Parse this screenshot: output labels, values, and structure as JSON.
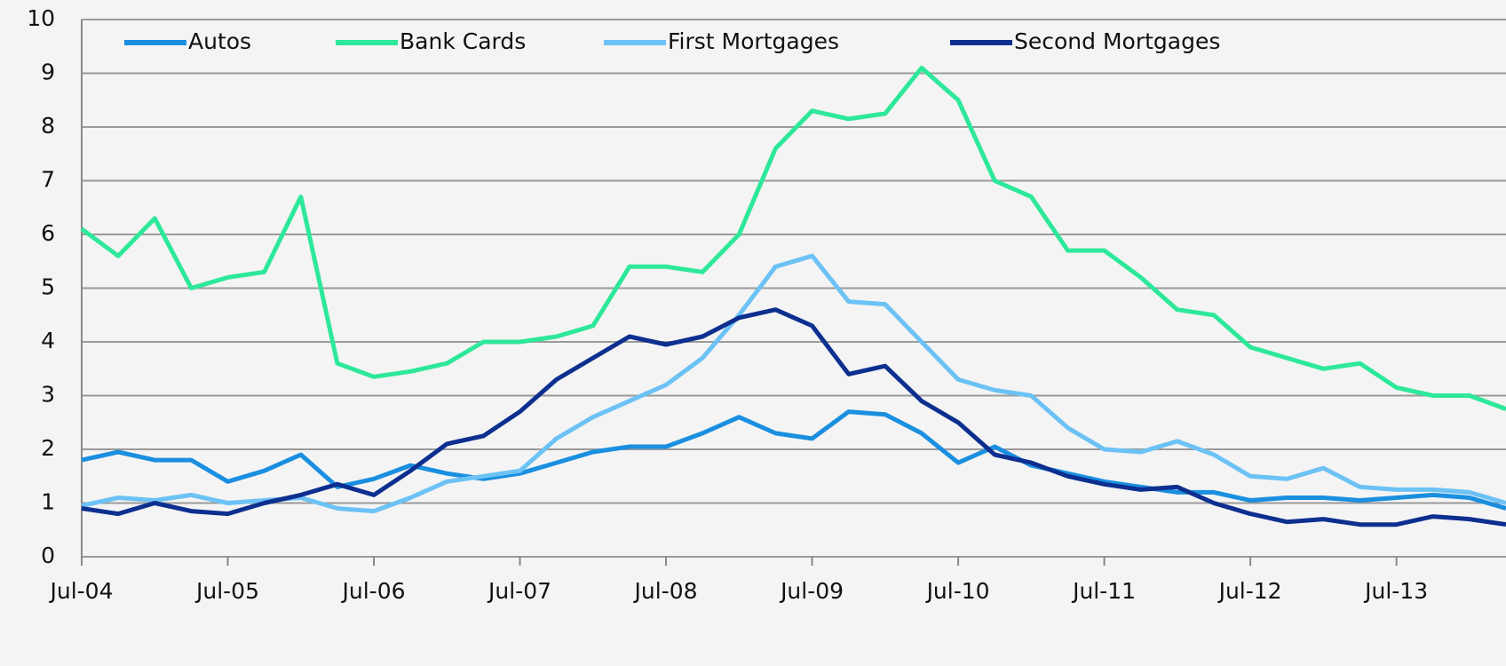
{
  "chart_data": {
    "type": "line",
    "categories": [
      "Jul-04",
      null,
      null,
      null,
      "Jul-05",
      null,
      null,
      null,
      "Jul-06",
      null,
      null,
      null,
      "Jul-07",
      null,
      null,
      null,
      "Jul-08",
      null,
      null,
      null,
      "Jul-09",
      null,
      null,
      null,
      "Jul-10",
      null,
      null,
      null,
      "Jul-11",
      null,
      null,
      null,
      "Jul-12",
      null,
      null,
      null,
      "Jul-13",
      null,
      null,
      null
    ],
    "series": [
      {
        "name": "Autos",
        "color": "#1a8fe0",
        "values": [
          1.8,
          1.95,
          1.8,
          1.8,
          1.4,
          1.6,
          1.9,
          1.3,
          1.45,
          1.7,
          1.55,
          1.45,
          1.55,
          1.75,
          1.95,
          2.05,
          2.05,
          2.3,
          2.6,
          2.3,
          2.2,
          2.7,
          2.65,
          2.3,
          1.75,
          2.05,
          1.7,
          1.55,
          1.4,
          1.3,
          1.2,
          1.2,
          1.05,
          1.1,
          1.1,
          1.05,
          1.1,
          1.15,
          1.1,
          0.9
        ]
      },
      {
        "name": "Bank Cards",
        "color": "#2ee89a",
        "values": [
          6.1,
          5.6,
          6.3,
          5.0,
          5.2,
          5.3,
          6.7,
          3.6,
          3.35,
          3.45,
          3.6,
          4.0,
          4.0,
          4.1,
          4.3,
          5.4,
          5.4,
          5.3,
          6.0,
          7.6,
          8.3,
          8.15,
          8.25,
          9.1,
          8.5,
          7.0,
          6.7,
          5.7,
          5.7,
          5.2,
          4.6,
          4.5,
          3.9,
          3.7,
          3.5,
          3.6,
          3.15,
          3.0,
          3.0,
          2.75
        ]
      },
      {
        "name": "First Mortgages",
        "color": "#6cc2f5",
        "values": [
          0.95,
          1.1,
          1.05,
          1.15,
          1.0,
          1.05,
          1.1,
          0.9,
          0.85,
          1.1,
          1.4,
          1.5,
          1.6,
          2.2,
          2.6,
          2.9,
          3.2,
          3.7,
          4.5,
          5.4,
          5.6,
          4.75,
          4.7,
          4.0,
          3.3,
          3.1,
          3.0,
          2.4,
          2.0,
          1.95,
          2.15,
          1.9,
          1.5,
          1.45,
          1.65,
          1.3,
          1.25,
          1.25,
          1.2,
          1.0
        ]
      },
      {
        "name": "Second Mortgages",
        "color": "#0d2f8f",
        "values": [
          0.9,
          0.8,
          1.0,
          0.85,
          0.8,
          1.0,
          1.15,
          1.35,
          1.15,
          1.6,
          2.1,
          2.25,
          2.7,
          3.3,
          3.7,
          4.1,
          3.95,
          4.1,
          4.45,
          4.6,
          4.3,
          3.4,
          3.55,
          2.9,
          2.5,
          1.9,
          1.75,
          1.5,
          1.35,
          1.25,
          1.3,
          1.0,
          0.8,
          0.65,
          0.7,
          0.6,
          0.6,
          0.75,
          0.7,
          0.6
        ]
      }
    ],
    "ylim": [
      0,
      10
    ],
    "yticks": [
      0,
      1,
      2,
      3,
      4,
      5,
      6,
      7,
      8,
      9,
      10
    ],
    "grid": true,
    "legend": "top"
  }
}
